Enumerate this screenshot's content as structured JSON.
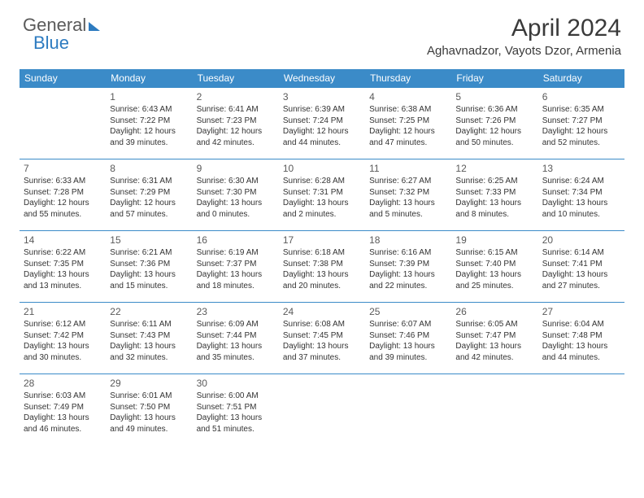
{
  "brand": {
    "part1": "General",
    "part2": "Blue"
  },
  "title": "April 2024",
  "location": "Aghavnadzor, Vayots Dzor, Armenia",
  "colors": {
    "header_bg": "#3b8bc8",
    "header_text": "#ffffff",
    "divider": "#3b8bc8",
    "logo_gray": "#5a5a5a",
    "logo_blue": "#2d7bc0",
    "body_text": "#333333"
  },
  "weekdays": [
    "Sunday",
    "Monday",
    "Tuesday",
    "Wednesday",
    "Thursday",
    "Friday",
    "Saturday"
  ],
  "first_weekday_index": 1,
  "days": [
    {
      "n": 1,
      "sunrise": "6:43 AM",
      "sunset": "7:22 PM",
      "daylight": "12 hours and 39 minutes."
    },
    {
      "n": 2,
      "sunrise": "6:41 AM",
      "sunset": "7:23 PM",
      "daylight": "12 hours and 42 minutes."
    },
    {
      "n": 3,
      "sunrise": "6:39 AM",
      "sunset": "7:24 PM",
      "daylight": "12 hours and 44 minutes."
    },
    {
      "n": 4,
      "sunrise": "6:38 AM",
      "sunset": "7:25 PM",
      "daylight": "12 hours and 47 minutes."
    },
    {
      "n": 5,
      "sunrise": "6:36 AM",
      "sunset": "7:26 PM",
      "daylight": "12 hours and 50 minutes."
    },
    {
      "n": 6,
      "sunrise": "6:35 AM",
      "sunset": "7:27 PM",
      "daylight": "12 hours and 52 minutes."
    },
    {
      "n": 7,
      "sunrise": "6:33 AM",
      "sunset": "7:28 PM",
      "daylight": "12 hours and 55 minutes."
    },
    {
      "n": 8,
      "sunrise": "6:31 AM",
      "sunset": "7:29 PM",
      "daylight": "12 hours and 57 minutes."
    },
    {
      "n": 9,
      "sunrise": "6:30 AM",
      "sunset": "7:30 PM",
      "daylight": "13 hours and 0 minutes."
    },
    {
      "n": 10,
      "sunrise": "6:28 AM",
      "sunset": "7:31 PM",
      "daylight": "13 hours and 2 minutes."
    },
    {
      "n": 11,
      "sunrise": "6:27 AM",
      "sunset": "7:32 PM",
      "daylight": "13 hours and 5 minutes."
    },
    {
      "n": 12,
      "sunrise": "6:25 AM",
      "sunset": "7:33 PM",
      "daylight": "13 hours and 8 minutes."
    },
    {
      "n": 13,
      "sunrise": "6:24 AM",
      "sunset": "7:34 PM",
      "daylight": "13 hours and 10 minutes."
    },
    {
      "n": 14,
      "sunrise": "6:22 AM",
      "sunset": "7:35 PM",
      "daylight": "13 hours and 13 minutes."
    },
    {
      "n": 15,
      "sunrise": "6:21 AM",
      "sunset": "7:36 PM",
      "daylight": "13 hours and 15 minutes."
    },
    {
      "n": 16,
      "sunrise": "6:19 AM",
      "sunset": "7:37 PM",
      "daylight": "13 hours and 18 minutes."
    },
    {
      "n": 17,
      "sunrise": "6:18 AM",
      "sunset": "7:38 PM",
      "daylight": "13 hours and 20 minutes."
    },
    {
      "n": 18,
      "sunrise": "6:16 AM",
      "sunset": "7:39 PM",
      "daylight": "13 hours and 22 minutes."
    },
    {
      "n": 19,
      "sunrise": "6:15 AM",
      "sunset": "7:40 PM",
      "daylight": "13 hours and 25 minutes."
    },
    {
      "n": 20,
      "sunrise": "6:14 AM",
      "sunset": "7:41 PM",
      "daylight": "13 hours and 27 minutes."
    },
    {
      "n": 21,
      "sunrise": "6:12 AM",
      "sunset": "7:42 PM",
      "daylight": "13 hours and 30 minutes."
    },
    {
      "n": 22,
      "sunrise": "6:11 AM",
      "sunset": "7:43 PM",
      "daylight": "13 hours and 32 minutes."
    },
    {
      "n": 23,
      "sunrise": "6:09 AM",
      "sunset": "7:44 PM",
      "daylight": "13 hours and 35 minutes."
    },
    {
      "n": 24,
      "sunrise": "6:08 AM",
      "sunset": "7:45 PM",
      "daylight": "13 hours and 37 minutes."
    },
    {
      "n": 25,
      "sunrise": "6:07 AM",
      "sunset": "7:46 PM",
      "daylight": "13 hours and 39 minutes."
    },
    {
      "n": 26,
      "sunrise": "6:05 AM",
      "sunset": "7:47 PM",
      "daylight": "13 hours and 42 minutes."
    },
    {
      "n": 27,
      "sunrise": "6:04 AM",
      "sunset": "7:48 PM",
      "daylight": "13 hours and 44 minutes."
    },
    {
      "n": 28,
      "sunrise": "6:03 AM",
      "sunset": "7:49 PM",
      "daylight": "13 hours and 46 minutes."
    },
    {
      "n": 29,
      "sunrise": "6:01 AM",
      "sunset": "7:50 PM",
      "daylight": "13 hours and 49 minutes."
    },
    {
      "n": 30,
      "sunrise": "6:00 AM",
      "sunset": "7:51 PM",
      "daylight": "13 hours and 51 minutes."
    }
  ]
}
